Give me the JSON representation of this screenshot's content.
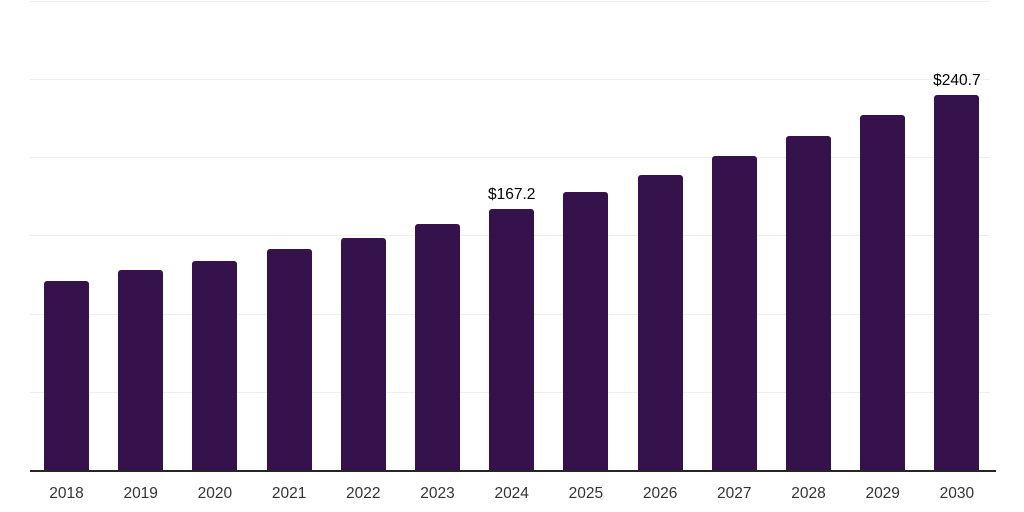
{
  "chart_data": {
    "type": "bar",
    "categories": [
      "2018",
      "2019",
      "2020",
      "2021",
      "2022",
      "2023",
      "2024",
      "2025",
      "2026",
      "2027",
      "2028",
      "2029",
      "2030"
    ],
    "values": [
      121.5,
      128.4,
      134.5,
      141.8,
      149.2,
      158.0,
      167.2,
      178.1,
      189.4,
      201.5,
      214.4,
      227.5,
      240.7
    ],
    "value_labels": {
      "2024": "$167.2",
      "2030": "$240.7"
    },
    "ylim": [
      0,
      300
    ],
    "gridline_interval": 50,
    "grid": true,
    "legend": "none",
    "y_axis_tick_labels_visible": false,
    "currency_prefix": "$"
  },
  "colors": {
    "background": "#ffffff",
    "bar": "#36124d",
    "gridline": "#efefef",
    "axis_line": "#262626",
    "x_tick_label": "#333333",
    "data_label": "#000000"
  }
}
